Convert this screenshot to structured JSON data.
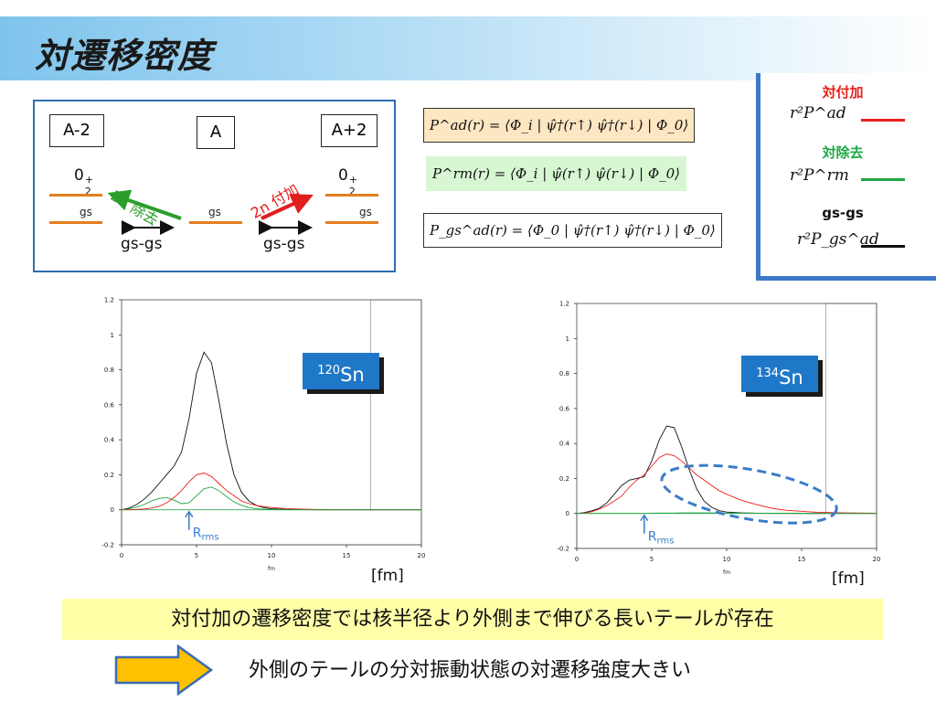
{
  "slide": {
    "title": "対遷移密度",
    "summary": "対付加の遷移密度では核半径より外側まで伸びる長いテールが存在",
    "conclusion": "外側のテールの分対振動状態の対遷移強度大きい"
  },
  "diagram": {
    "nucleus_left": "A-2",
    "nucleus_center": "A",
    "nucleus_right": "A+2",
    "level_left_main": "0",
    "level_right_main": "0",
    "level_sup": "+",
    "level_sub": "2",
    "gs_label": "gs",
    "removal_label": "2n 除去",
    "addition_label": "2n 付加",
    "gsgs_label": "gs-gs",
    "colors": {
      "removal": "#2a9d2a",
      "addition": "#e01f1f",
      "level": "#e57d1f"
    }
  },
  "formulas": {
    "ad": "P^ad(r) = ⟨Φ_i | ψ̂†(r↑) ψ̂†(r↓) | Φ_0⟩",
    "rm": "P^rm(r) = ⟨Φ_i | ψ̂(r↑) ψ̂(r↓) | Φ_0⟩",
    "gs": "P_gs^ad(r) = ⟨Φ_0 | ψ̂†(r↑) ψ̂†(r↓) | Φ_0⟩",
    "colors": {
      "ad": "#fde6c2",
      "rm": "#d7f7d3",
      "gs": "#ffffff"
    }
  },
  "legend": {
    "ad_title": "対付加",
    "rm_title": "対除去",
    "gs_title": "gs-gs",
    "ad_math": "r²P^ad",
    "rm_math": "r²P^rm",
    "gs_math": "r²P_gs^ad",
    "colors": {
      "ad": "#e8201c",
      "rm": "#1ea844",
      "gs": "#111111"
    }
  },
  "chart_data": [
    {
      "type": "line",
      "tag_mass": "120",
      "tag_element": "Sn",
      "rrms_main": "R",
      "rrms_sub": "rms",
      "xunit_small": "fm",
      "xunit_label": "[fm]",
      "xlim": [
        0,
        20
      ],
      "ylim": [
        -0.2,
        1.2
      ],
      "xticks": [
        0,
        5,
        10,
        15,
        20
      ],
      "yticks": [
        -0.2,
        0,
        0.2,
        0.4,
        0.6,
        0.8,
        1,
        1.2
      ],
      "x": [
        0,
        0.5,
        1,
        1.5,
        2,
        2.5,
        3,
        3.5,
        4,
        4.5,
        5,
        5.5,
        6,
        6.5,
        7,
        7.5,
        8,
        8.5,
        9,
        9.5,
        10,
        11,
        12,
        13,
        14,
        16,
        18,
        20
      ],
      "series": [
        {
          "color": "#111111",
          "values": [
            0,
            0.01,
            0.03,
            0.06,
            0.1,
            0.15,
            0.2,
            0.25,
            0.33,
            0.52,
            0.78,
            0.9,
            0.84,
            0.62,
            0.38,
            0.2,
            0.1,
            0.05,
            0.025,
            0.012,
            0.006,
            0.002,
            0.001,
            0,
            0,
            0,
            0,
            0
          ]
        },
        {
          "color": "#e8201c",
          "values": [
            0,
            0,
            0.002,
            0.005,
            0.01,
            0.02,
            0.04,
            0.07,
            0.11,
            0.16,
            0.2,
            0.21,
            0.19,
            0.15,
            0.11,
            0.08,
            0.05,
            0.035,
            0.025,
            0.018,
            0.013,
            0.007,
            0.004,
            0.002,
            0.001,
            0,
            0,
            0
          ]
        },
        {
          "color": "#1ea844",
          "values": [
            0,
            0.005,
            0.015,
            0.03,
            0.05,
            0.065,
            0.07,
            0.055,
            0.035,
            0.04,
            0.08,
            0.12,
            0.13,
            0.11,
            0.075,
            0.045,
            0.025,
            0.013,
            0.006,
            0.003,
            0.001,
            0,
            0,
            0,
            0,
            0,
            0,
            0
          ]
        }
      ]
    },
    {
      "type": "line",
      "tag_mass": "134",
      "tag_element": "Sn",
      "rrms_main": "R",
      "rrms_sub": "rms",
      "xunit_small": "fm",
      "xunit_label": "[fm]",
      "xlim": [
        0,
        20
      ],
      "ylim": [
        -0.2,
        1.2
      ],
      "xticks": [
        0,
        5,
        10,
        15,
        20
      ],
      "yticks": [
        -0.2,
        0,
        0.2,
        0.4,
        0.6,
        0.8,
        1,
        1.2
      ],
      "x": [
        0,
        0.5,
        1,
        1.5,
        2,
        2.5,
        3,
        3.5,
        4,
        4.5,
        5,
        5.5,
        6,
        6.5,
        7,
        7.5,
        8,
        8.5,
        9,
        9.5,
        10,
        11,
        12,
        13,
        14,
        16,
        18,
        20
      ],
      "series": [
        {
          "color": "#111111",
          "values": [
            0,
            0.005,
            0.015,
            0.03,
            0.06,
            0.11,
            0.16,
            0.19,
            0.2,
            0.21,
            0.3,
            0.42,
            0.5,
            0.49,
            0.38,
            0.25,
            0.14,
            0.07,
            0.035,
            0.016,
            0.008,
            0.003,
            0.001,
            0,
            0,
            0,
            0,
            0
          ]
        },
        {
          "color": "#e8201c",
          "values": [
            0,
            0.002,
            0.01,
            0.025,
            0.045,
            0.07,
            0.1,
            0.15,
            0.19,
            0.22,
            0.27,
            0.32,
            0.34,
            0.33,
            0.3,
            0.26,
            0.22,
            0.19,
            0.16,
            0.13,
            0.11,
            0.075,
            0.05,
            0.03,
            0.018,
            0.007,
            0.003,
            0.001
          ]
        },
        {
          "color": "#1ea844",
          "values": [
            0,
            0,
            0,
            0,
            0,
            0,
            0,
            0,
            0,
            0,
            0.001,
            0.002,
            0.002,
            0.002,
            0.003,
            0.003,
            0.003,
            0.003,
            0.003,
            0.002,
            0.002,
            0.002,
            0.001,
            0.001,
            0.001,
            0,
            0,
            0
          ]
        }
      ]
    }
  ]
}
